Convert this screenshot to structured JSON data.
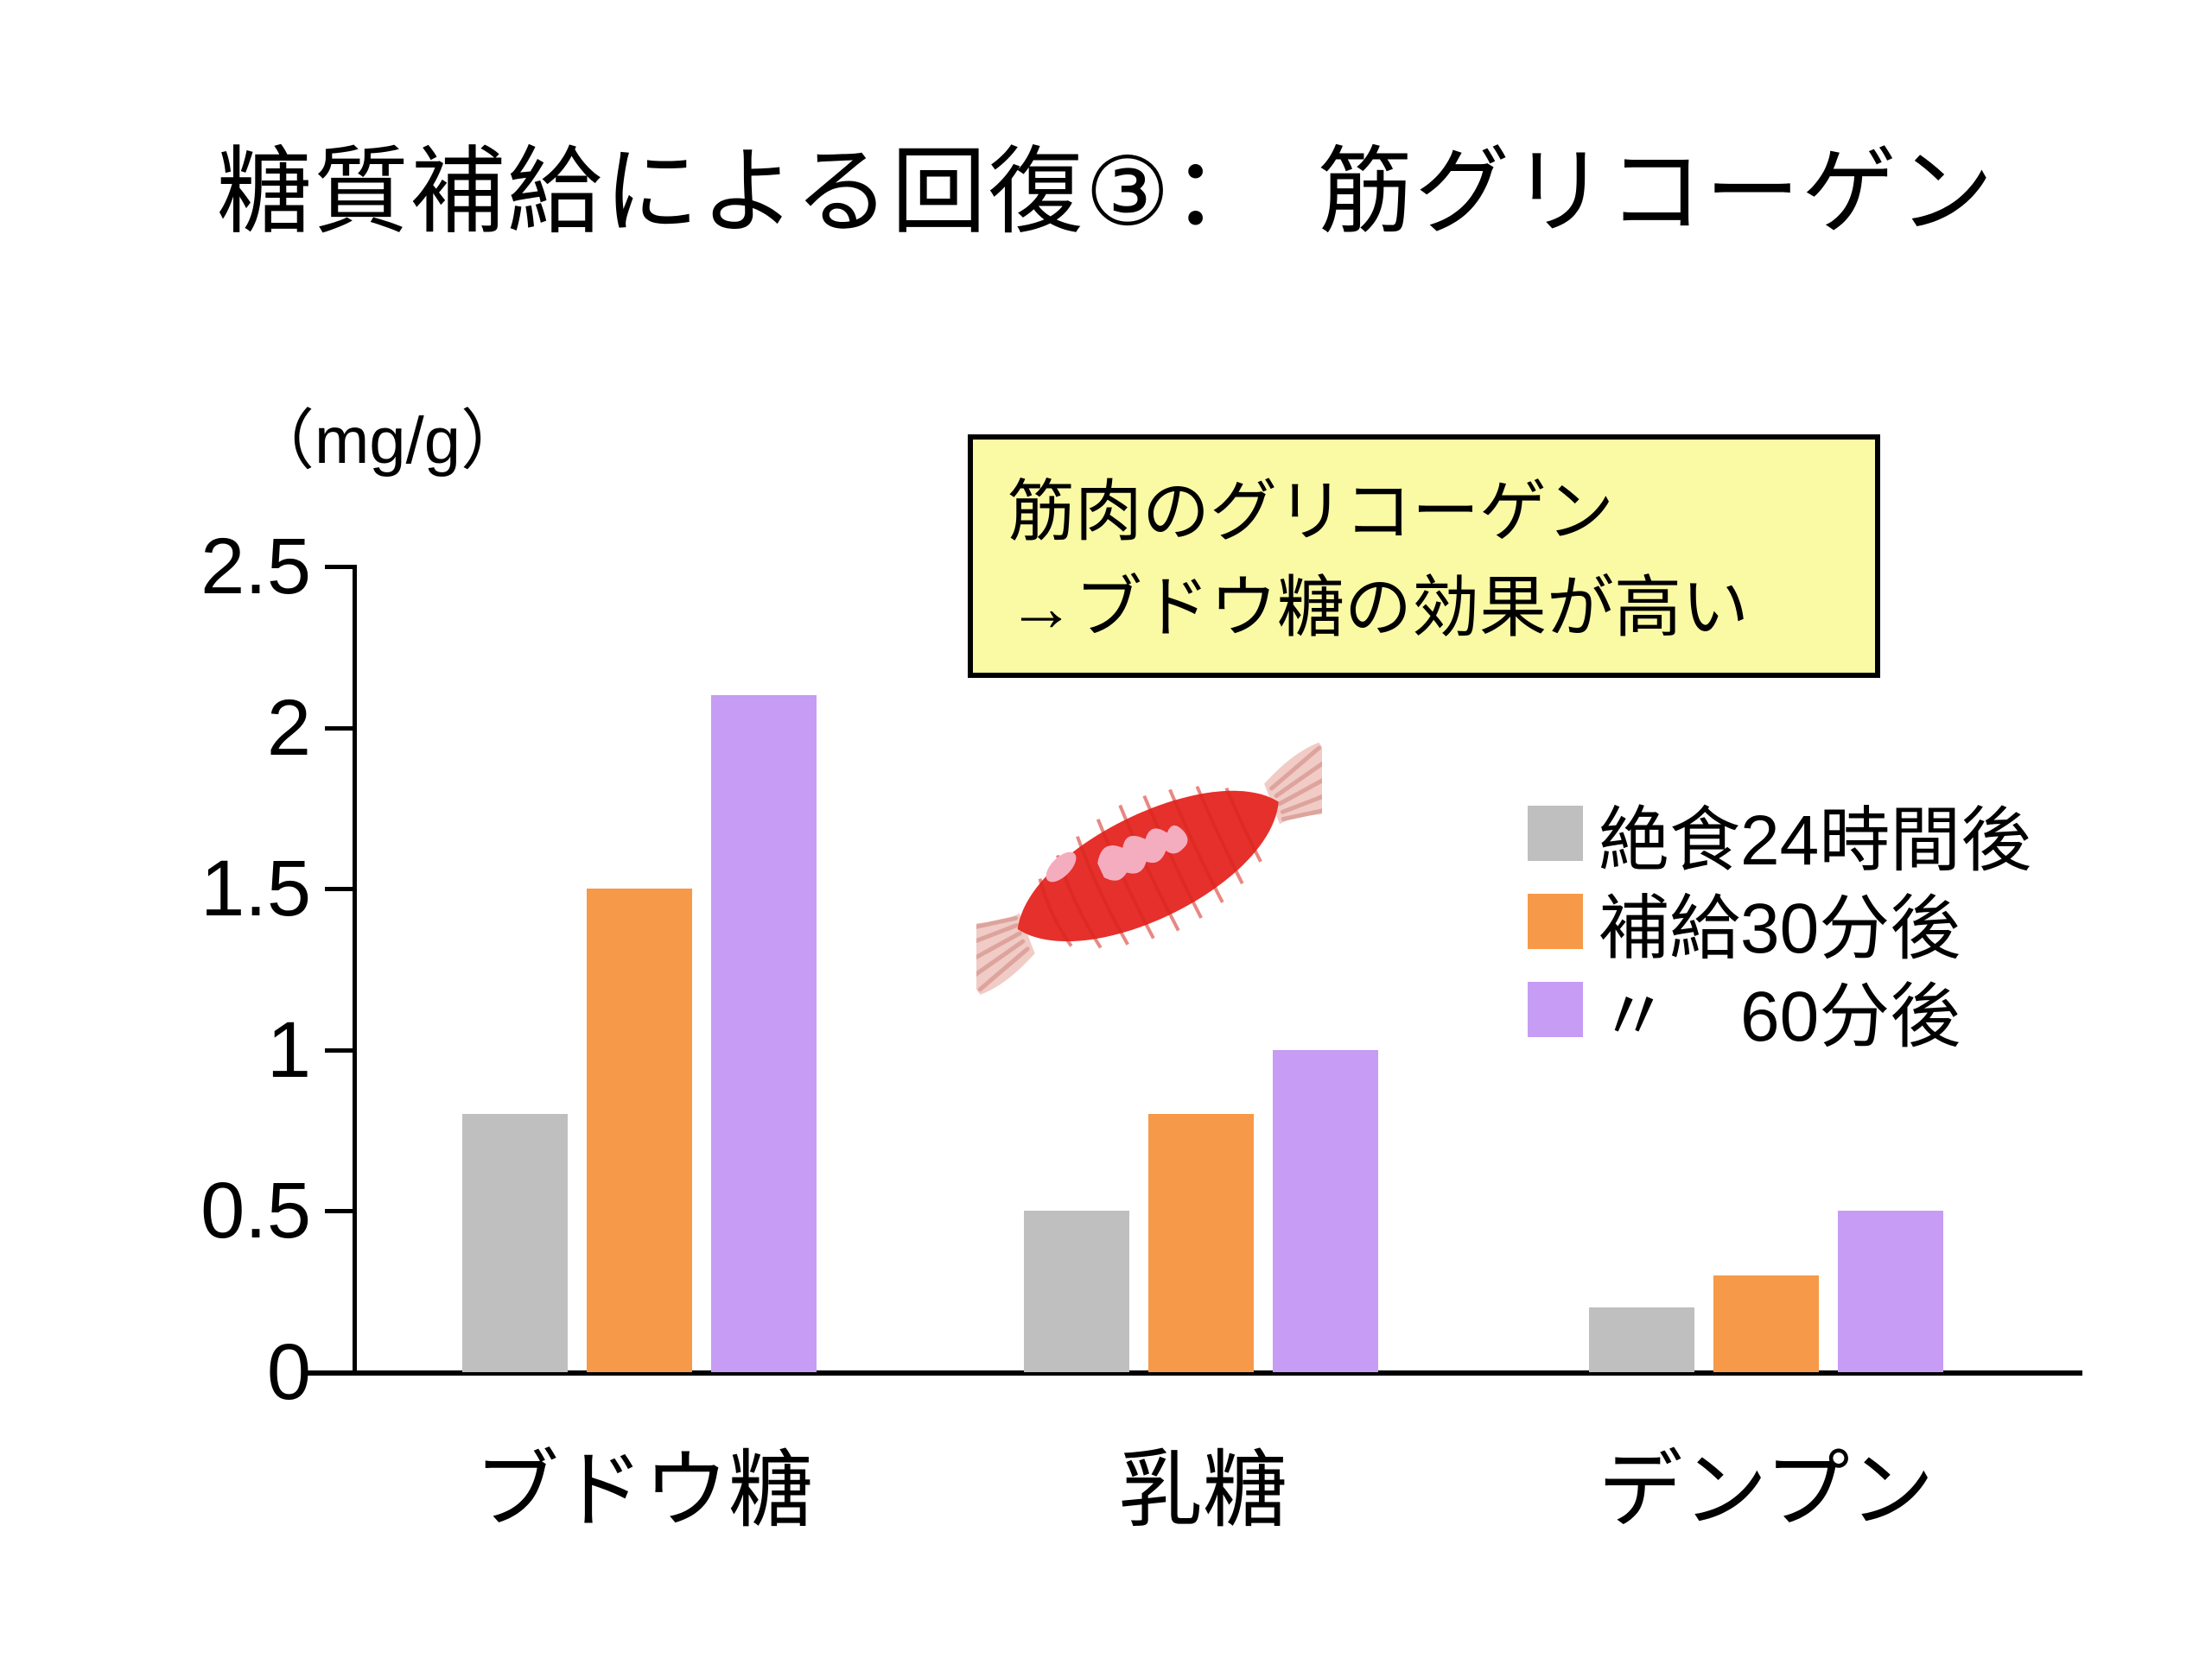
{
  "title": "糖質補給による回復③：　筋グリコーゲン",
  "chart_data": {
    "type": "bar",
    "title": "糖質補給による回復③：　筋グリコーゲン",
    "unit_label": "（mg/g）",
    "categories": [
      "ブドウ糖",
      "乳糖",
      "デンプン"
    ],
    "series": [
      {
        "name": "絶食24時間後",
        "color": "#BFBFBF",
        "values": [
          0.8,
          0.5,
          0.2
        ]
      },
      {
        "name": "補給30分後",
        "color": "#F69949",
        "values": [
          1.5,
          0.8,
          0.3
        ]
      },
      {
        "name": "〃　60分後",
        "color": "#C69CF4",
        "values": [
          2.1,
          1.0,
          0.5
        ]
      }
    ],
    "y_ticks": [
      "2.5",
      "2",
      "1.5",
      "1",
      "0.5",
      "0"
    ],
    "ylim": [
      0,
      2.5
    ],
    "grid": false,
    "legend_position": "right",
    "axis_color": "#000000"
  },
  "callout": {
    "line1": "筋肉のグリコーゲン",
    "line2": "→ブドウ糖の効果が高い",
    "bg_color": "#FAFAA5",
    "border_color": "#000000"
  },
  "icons": {
    "muscle": "muscle-illustration"
  },
  "colors": {
    "muscle_body": "#E6302C",
    "muscle_stripe": "#D7281F",
    "muscle_highlight": "#F4ADBE",
    "tendon": "#F1CBC5",
    "tendon_stripe": "#DDA49D"
  }
}
